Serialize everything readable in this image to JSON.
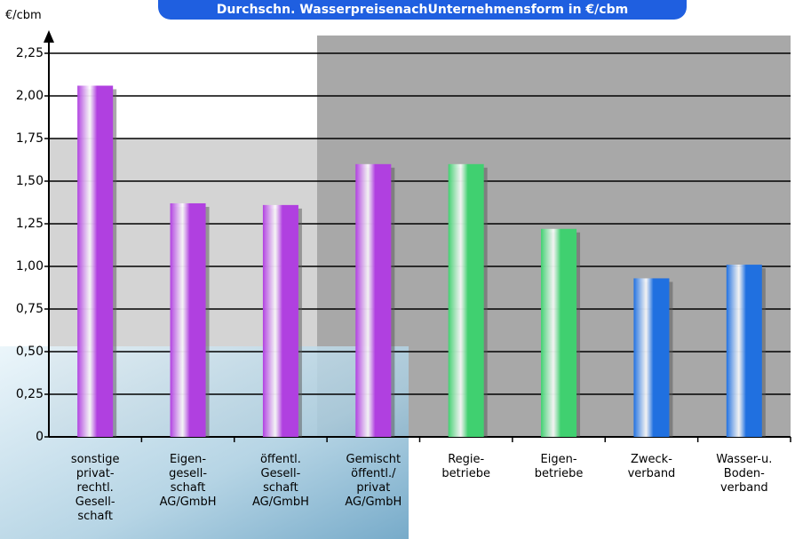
{
  "chart_data": {
    "type": "bar",
    "title": "Durchschn. WasserpreisenachUnternehmensform in €/cbm",
    "y_label": "€/cbm",
    "categories": [
      "sonstige\nprivat-\nrechtl.\nGesell-\nschaft",
      "Eigen-\ngesell-\nschaft\nAG/GmbH",
      "öffentl.\nGesell-\nschaft\nAG/GmbH",
      "Gemischt\nöffentl./\nprivat\nAG/GmbH",
      "Regie-\nbetriebe",
      "Eigen-\nbetriebe",
      "Zweck-\nverband",
      "Wasser-u.\nBoden-\nverband"
    ],
    "values": [
      2.06,
      1.37,
      1.36,
      1.6,
      1.6,
      1.22,
      0.93,
      1.01
    ],
    "colors": [
      "#b040e0",
      "#b040e0",
      "#b040e0",
      "#b040e0",
      "#40d070",
      "#40d070",
      "#2070e0",
      "#2070e0"
    ],
    "ylim": [
      0,
      2.25
    ],
    "yticks": [
      0,
      {
        "value": 0.25,
        "label": "0,25"
      },
      {
        "value": 0.5,
        "label": "0,50"
      },
      {
        "value": 0.75,
        "label": "0,75"
      },
      {
        "value": 1,
        "label": "1,00"
      },
      {
        "value": 1.25,
        "label": "1,25"
      },
      {
        "value": 1.5,
        "label": "1,50"
      },
      {
        "value": 1.75,
        "label": "1,75"
      },
      {
        "value": 2,
        "label": "2,00"
      },
      {
        "value": 2.25,
        "label": "2,25"
      }
    ],
    "grid": true
  }
}
